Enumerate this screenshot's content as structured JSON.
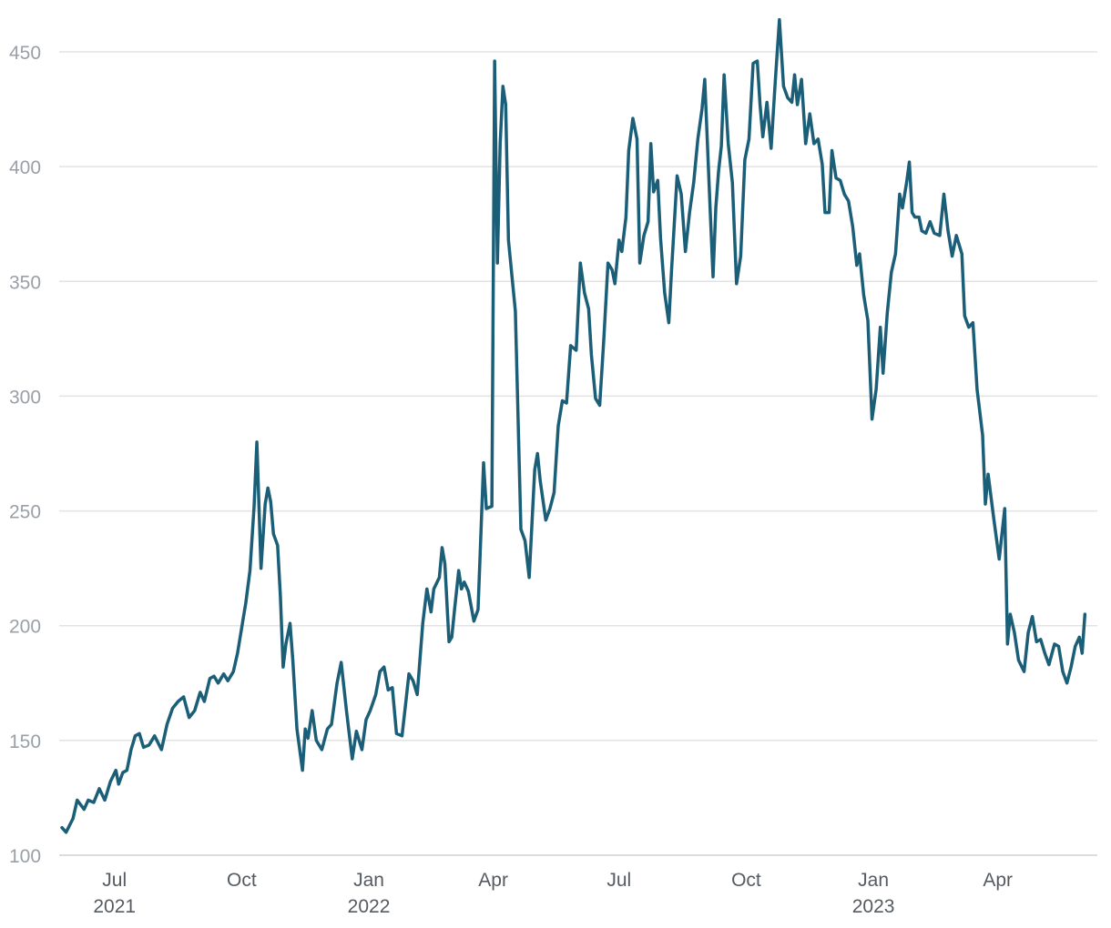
{
  "chart_data": {
    "type": "line",
    "title": "",
    "xlabel": "",
    "ylabel": "",
    "x_range": [
      "2021-05-22",
      "2023-06-12"
    ],
    "ylim": [
      100,
      460
    ],
    "grid": "horizontal",
    "legend": "none",
    "line_color": "#1b5e78",
    "y_ticks": [
      {
        "value": 100,
        "label": "100"
      },
      {
        "value": 150,
        "label": "150"
      },
      {
        "value": 200,
        "label": "200"
      },
      {
        "value": 250,
        "label": "250"
      },
      {
        "value": 300,
        "label": "300"
      },
      {
        "value": 350,
        "label": "350"
      },
      {
        "value": 400,
        "label": "400"
      },
      {
        "value": 450,
        "label": "450"
      }
    ],
    "x_ticks": [
      {
        "date": "2021-07-01",
        "label": "Jul",
        "year": "2021"
      },
      {
        "date": "2021-10-01",
        "label": "Oct",
        "year": ""
      },
      {
        "date": "2022-01-01",
        "label": "Jan",
        "year": "2022"
      },
      {
        "date": "2022-04-01",
        "label": "Apr",
        "year": ""
      },
      {
        "date": "2022-07-01",
        "label": "Jul",
        "year": ""
      },
      {
        "date": "2022-10-01",
        "label": "Oct",
        "year": ""
      },
      {
        "date": "2023-01-01",
        "label": "Jan",
        "year": "2023"
      },
      {
        "date": "2023-04-01",
        "label": "Apr",
        "year": ""
      }
    ],
    "series": [
      {
        "points": [
          [
            "2021-05-24",
            112
          ],
          [
            "2021-05-27",
            110
          ],
          [
            "2021-06-01",
            116
          ],
          [
            "2021-06-04",
            124
          ],
          [
            "2021-06-09",
            120
          ],
          [
            "2021-06-12",
            124
          ],
          [
            "2021-06-16",
            123
          ],
          [
            "2021-06-20",
            129
          ],
          [
            "2021-06-24",
            124
          ],
          [
            "2021-06-28",
            132
          ],
          [
            "2021-07-02",
            137
          ],
          [
            "2021-07-04",
            131
          ],
          [
            "2021-07-07",
            136
          ],
          [
            "2021-07-10",
            137
          ],
          [
            "2021-07-13",
            146
          ],
          [
            "2021-07-16",
            152
          ],
          [
            "2021-07-19",
            153
          ],
          [
            "2021-07-22",
            147
          ],
          [
            "2021-07-26",
            148
          ],
          [
            "2021-07-30",
            152
          ],
          [
            "2021-08-04",
            146
          ],
          [
            "2021-08-08",
            157
          ],
          [
            "2021-08-12",
            164
          ],
          [
            "2021-08-16",
            167
          ],
          [
            "2021-08-20",
            169
          ],
          [
            "2021-08-24",
            160
          ],
          [
            "2021-08-28",
            163
          ],
          [
            "2021-09-01",
            171
          ],
          [
            "2021-09-04",
            167
          ],
          [
            "2021-09-08",
            177
          ],
          [
            "2021-09-11",
            178
          ],
          [
            "2021-09-14",
            175
          ],
          [
            "2021-09-18",
            179
          ],
          [
            "2021-09-21",
            176
          ],
          [
            "2021-09-25",
            180
          ],
          [
            "2021-09-28",
            188
          ],
          [
            "2021-10-01",
            199
          ],
          [
            "2021-10-04",
            210
          ],
          [
            "2021-10-07",
            224
          ],
          [
            "2021-10-10",
            252
          ],
          [
            "2021-10-12",
            280
          ],
          [
            "2021-10-15",
            225
          ],
          [
            "2021-10-18",
            253
          ],
          [
            "2021-10-20",
            260
          ],
          [
            "2021-10-22",
            254
          ],
          [
            "2021-10-24",
            240
          ],
          [
            "2021-10-27",
            235
          ],
          [
            "2021-10-29",
            213
          ],
          [
            "2021-10-31",
            182
          ],
          [
            "2021-11-02",
            192
          ],
          [
            "2021-11-05",
            201
          ],
          [
            "2021-11-07",
            185
          ],
          [
            "2021-11-10",
            155
          ],
          [
            "2021-11-14",
            137
          ],
          [
            "2021-11-16",
            155
          ],
          [
            "2021-11-18",
            151
          ],
          [
            "2021-11-21",
            163
          ],
          [
            "2021-11-24",
            150
          ],
          [
            "2021-11-28",
            146
          ],
          [
            "2021-12-02",
            155
          ],
          [
            "2021-12-05",
            157
          ],
          [
            "2021-12-09",
            175
          ],
          [
            "2021-12-12",
            184
          ],
          [
            "2021-12-16",
            162
          ],
          [
            "2021-12-20",
            142
          ],
          [
            "2021-12-23",
            154
          ],
          [
            "2021-12-27",
            146
          ],
          [
            "2021-12-30",
            159
          ],
          [
            "2022-01-02",
            163
          ],
          [
            "2022-01-06",
            170
          ],
          [
            "2022-01-09",
            180
          ],
          [
            "2022-01-12",
            182
          ],
          [
            "2022-01-15",
            172
          ],
          [
            "2022-01-18",
            173
          ],
          [
            "2022-01-21",
            153
          ],
          [
            "2022-01-25",
            152
          ],
          [
            "2022-01-28",
            168
          ],
          [
            "2022-01-30",
            179
          ],
          [
            "2022-02-02",
            176
          ],
          [
            "2022-02-05",
            170
          ],
          [
            "2022-02-09",
            201
          ],
          [
            "2022-02-12",
            216
          ],
          [
            "2022-02-15",
            206
          ],
          [
            "2022-02-17",
            216
          ],
          [
            "2022-02-21",
            221
          ],
          [
            "2022-02-23",
            234
          ],
          [
            "2022-02-25",
            227
          ],
          [
            "2022-02-28",
            193
          ],
          [
            "2022-03-02",
            195
          ],
          [
            "2022-03-04",
            207
          ],
          [
            "2022-03-07",
            224
          ],
          [
            "2022-03-09",
            216
          ],
          [
            "2022-03-11",
            219
          ],
          [
            "2022-03-14",
            215
          ],
          [
            "2022-03-18",
            202
          ],
          [
            "2022-03-21",
            207
          ],
          [
            "2022-03-23",
            239
          ],
          [
            "2022-03-25",
            271
          ],
          [
            "2022-03-27",
            251
          ],
          [
            "2022-03-31",
            252
          ],
          [
            "2022-04-02",
            446
          ],
          [
            "2022-04-04",
            358
          ],
          [
            "2022-04-06",
            410
          ],
          [
            "2022-04-08",
            435
          ],
          [
            "2022-04-10",
            427
          ],
          [
            "2022-04-12",
            368
          ],
          [
            "2022-04-17",
            337
          ],
          [
            "2022-04-21",
            242
          ],
          [
            "2022-04-24",
            237
          ],
          [
            "2022-04-27",
            221
          ],
          [
            "2022-05-01",
            268
          ],
          [
            "2022-05-03",
            275
          ],
          [
            "2022-05-05",
            263
          ],
          [
            "2022-05-09",
            246
          ],
          [
            "2022-05-12",
            251
          ],
          [
            "2022-05-15",
            258
          ],
          [
            "2022-05-18",
            287
          ],
          [
            "2022-05-21",
            298
          ],
          [
            "2022-05-24",
            297
          ],
          [
            "2022-05-27",
            322
          ],
          [
            "2022-05-31",
            320
          ],
          [
            "2022-06-03",
            358
          ],
          [
            "2022-06-06",
            345
          ],
          [
            "2022-06-09",
            338
          ],
          [
            "2022-06-11",
            318
          ],
          [
            "2022-06-14",
            299
          ],
          [
            "2022-06-17",
            296
          ],
          [
            "2022-06-20",
            325
          ],
          [
            "2022-06-23",
            358
          ],
          [
            "2022-06-26",
            355
          ],
          [
            "2022-06-28",
            349
          ],
          [
            "2022-07-01",
            368
          ],
          [
            "2022-07-03",
            363
          ],
          [
            "2022-07-06",
            378
          ],
          [
            "2022-07-08",
            407
          ],
          [
            "2022-07-11",
            421
          ],
          [
            "2022-07-14",
            412
          ],
          [
            "2022-07-16",
            358
          ],
          [
            "2022-07-19",
            370
          ],
          [
            "2022-07-22",
            376
          ],
          [
            "2022-07-24",
            410
          ],
          [
            "2022-07-26",
            389
          ],
          [
            "2022-07-29",
            394
          ],
          [
            "2022-07-31",
            369
          ],
          [
            "2022-08-03",
            345
          ],
          [
            "2022-08-06",
            332
          ],
          [
            "2022-08-08",
            355
          ],
          [
            "2022-08-12",
            396
          ],
          [
            "2022-08-15",
            388
          ],
          [
            "2022-08-18",
            363
          ],
          [
            "2022-08-21",
            380
          ],
          [
            "2022-08-24",
            393
          ],
          [
            "2022-08-27",
            412
          ],
          [
            "2022-08-30",
            425
          ],
          [
            "2022-09-01",
            438
          ],
          [
            "2022-09-05",
            380
          ],
          [
            "2022-09-07",
            352
          ],
          [
            "2022-09-09",
            382
          ],
          [
            "2022-09-11",
            398
          ],
          [
            "2022-09-13",
            409
          ],
          [
            "2022-09-15",
            440
          ],
          [
            "2022-09-18",
            410
          ],
          [
            "2022-09-21",
            393
          ],
          [
            "2022-09-24",
            349
          ],
          [
            "2022-09-27",
            361
          ],
          [
            "2022-09-30",
            403
          ],
          [
            "2022-10-03",
            412
          ],
          [
            "2022-10-06",
            445
          ],
          [
            "2022-10-09",
            446
          ],
          [
            "2022-10-11",
            427
          ],
          [
            "2022-10-13",
            413
          ],
          [
            "2022-10-16",
            428
          ],
          [
            "2022-10-19",
            408
          ],
          [
            "2022-10-22",
            437
          ],
          [
            "2022-10-25",
            464
          ],
          [
            "2022-10-28",
            435
          ],
          [
            "2022-10-31",
            430
          ],
          [
            "2022-11-03",
            428
          ],
          [
            "2022-11-05",
            440
          ],
          [
            "2022-11-07",
            427
          ],
          [
            "2022-11-10",
            438
          ],
          [
            "2022-11-13",
            410
          ],
          [
            "2022-11-16",
            423
          ],
          [
            "2022-11-19",
            410
          ],
          [
            "2022-11-22",
            412
          ],
          [
            "2022-11-25",
            401
          ],
          [
            "2022-11-27",
            380
          ],
          [
            "2022-11-30",
            380
          ],
          [
            "2022-12-02",
            407
          ],
          [
            "2022-12-05",
            395
          ],
          [
            "2022-12-08",
            394
          ],
          [
            "2022-12-11",
            388
          ],
          [
            "2022-12-14",
            385
          ],
          [
            "2022-12-17",
            374
          ],
          [
            "2022-12-20",
            357
          ],
          [
            "2022-12-22",
            362
          ],
          [
            "2022-12-25",
            344
          ],
          [
            "2022-12-28",
            333
          ],
          [
            "2022-12-31",
            290
          ],
          [
            "2023-01-03",
            303
          ],
          [
            "2023-01-06",
            330
          ],
          [
            "2023-01-08",
            310
          ],
          [
            "2023-01-11",
            336
          ],
          [
            "2023-01-14",
            354
          ],
          [
            "2023-01-17",
            362
          ],
          [
            "2023-01-20",
            388
          ],
          [
            "2023-01-22",
            382
          ],
          [
            "2023-01-25",
            393
          ],
          [
            "2023-01-27",
            402
          ],
          [
            "2023-01-29",
            380
          ],
          [
            "2023-01-31",
            378
          ],
          [
            "2023-02-03",
            378
          ],
          [
            "2023-02-05",
            372
          ],
          [
            "2023-02-08",
            371
          ],
          [
            "2023-02-11",
            376
          ],
          [
            "2023-02-14",
            371
          ],
          [
            "2023-02-18",
            370
          ],
          [
            "2023-02-21",
            388
          ],
          [
            "2023-02-24",
            372
          ],
          [
            "2023-02-27",
            361
          ],
          [
            "2023-03-02",
            370
          ],
          [
            "2023-03-04",
            366
          ],
          [
            "2023-03-06",
            362
          ],
          [
            "2023-03-08",
            335
          ],
          [
            "2023-03-11",
            330
          ],
          [
            "2023-03-14",
            332
          ],
          [
            "2023-03-17",
            303
          ],
          [
            "2023-03-21",
            283
          ],
          [
            "2023-03-23",
            253
          ],
          [
            "2023-03-25",
            266
          ],
          [
            "2023-03-29",
            247
          ],
          [
            "2023-04-02",
            229
          ],
          [
            "2023-04-06",
            251
          ],
          [
            "2023-04-08",
            192
          ],
          [
            "2023-04-10",
            205
          ],
          [
            "2023-04-13",
            197
          ],
          [
            "2023-04-16",
            185
          ],
          [
            "2023-04-20",
            180
          ],
          [
            "2023-04-23",
            197
          ],
          [
            "2023-04-26",
            204
          ],
          [
            "2023-04-29",
            193
          ],
          [
            "2023-05-02",
            194
          ],
          [
            "2023-05-05",
            188
          ],
          [
            "2023-05-08",
            183
          ],
          [
            "2023-05-12",
            192
          ],
          [
            "2023-05-15",
            191
          ],
          [
            "2023-05-18",
            180
          ],
          [
            "2023-05-21",
            175
          ],
          [
            "2023-05-24",
            182
          ],
          [
            "2023-05-27",
            191
          ],
          [
            "2023-05-30",
            195
          ],
          [
            "2023-06-01",
            188
          ],
          [
            "2023-06-03",
            205
          ]
        ]
      }
    ]
  }
}
